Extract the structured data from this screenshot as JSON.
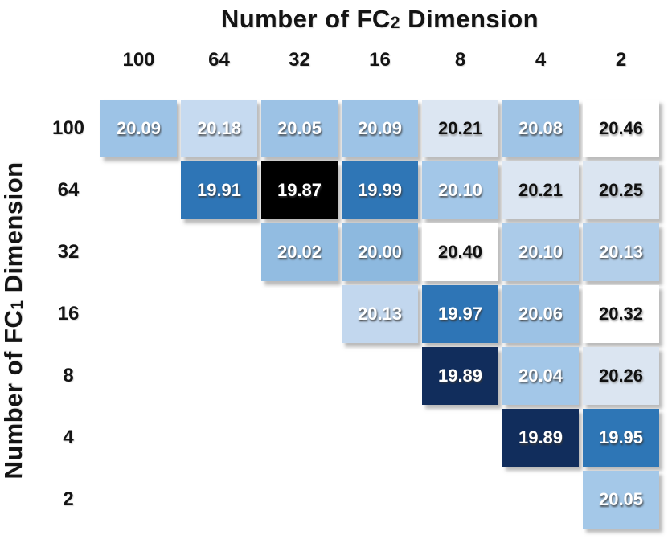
{
  "title": {
    "prefix": "Number of FC",
    "sub": "2",
    "suffix": " Dimension"
  },
  "y_axis": {
    "prefix": "Number of FC",
    "sub": "1",
    "suffix": " Dimension"
  },
  "chart_data": {
    "type": "heatmap",
    "title": "Number of FC2 Dimension",
    "ylabel": "Number of FC1 Dimension",
    "columns": [
      "100",
      "64",
      "32",
      "16",
      "8",
      "4",
      "2"
    ],
    "rows": [
      "100",
      "64",
      "32",
      "16",
      "8",
      "4",
      "2"
    ],
    "value_range": [
      19.87,
      20.46
    ],
    "color_scale": {
      "low": "#112d5c",
      "mid": "#9dc3e6",
      "high": "#ffffff",
      "min_highlight": "#000000"
    },
    "cells": [
      {
        "row": "100",
        "col": "100",
        "value": "20.09",
        "bg": "#9dc3e6",
        "fg": "#ffffff"
      },
      {
        "row": "100",
        "col": "64",
        "value": "20.18",
        "bg": "#c6daf0",
        "fg": "#ffffff"
      },
      {
        "row": "100",
        "col": "32",
        "value": "20.05",
        "bg": "#9cc2e5",
        "fg": "#ffffff"
      },
      {
        "row": "100",
        "col": "16",
        "value": "20.09",
        "bg": "#9dc3e6",
        "fg": "#ffffff"
      },
      {
        "row": "100",
        "col": "8",
        "value": "20.21",
        "bg": "#dce6f2",
        "fg": "#111111"
      },
      {
        "row": "100",
        "col": "4",
        "value": "20.08",
        "bg": "#9fc4e6",
        "fg": "#ffffff"
      },
      {
        "row": "100",
        "col": "2",
        "value": "20.46",
        "bg": "#ffffff",
        "fg": "#111111"
      },
      {
        "row": "64",
        "col": "64",
        "value": "19.91",
        "bg": "#2e75b6",
        "fg": "#ffffff"
      },
      {
        "row": "64",
        "col": "32",
        "value": "19.87",
        "bg": "#000000",
        "fg": "#ffffff"
      },
      {
        "row": "64",
        "col": "16",
        "value": "19.99",
        "bg": "#2f76b6",
        "fg": "#ffffff"
      },
      {
        "row": "64",
        "col": "8",
        "value": "20.10",
        "bg": "#a3c7e8",
        "fg": "#ffffff"
      },
      {
        "row": "64",
        "col": "4",
        "value": "20.21",
        "bg": "#dce6f2",
        "fg": "#111111"
      },
      {
        "row": "64",
        "col": "2",
        "value": "20.25",
        "bg": "#dbe5f1",
        "fg": "#111111"
      },
      {
        "row": "32",
        "col": "32",
        "value": "20.02",
        "bg": "#92bce1",
        "fg": "#ffffff"
      },
      {
        "row": "32",
        "col": "16",
        "value": "20.00",
        "bg": "#8db9df",
        "fg": "#ffffff"
      },
      {
        "row": "32",
        "col": "8",
        "value": "20.40",
        "bg": "#ffffff",
        "fg": "#111111"
      },
      {
        "row": "32",
        "col": "4",
        "value": "20.10",
        "bg": "#abcbe9",
        "fg": "#ffffff"
      },
      {
        "row": "32",
        "col": "2",
        "value": "20.13",
        "bg": "#b3cfea",
        "fg": "#ffffff"
      },
      {
        "row": "16",
        "col": "16",
        "value": "20.13",
        "bg": "#c2d7ee",
        "fg": "#ffffff"
      },
      {
        "row": "16",
        "col": "8",
        "value": "19.97",
        "bg": "#2e75b6",
        "fg": "#ffffff"
      },
      {
        "row": "16",
        "col": "4",
        "value": "20.06",
        "bg": "#9cc2e5",
        "fg": "#ffffff"
      },
      {
        "row": "16",
        "col": "2",
        "value": "20.32",
        "bg": "#ffffff",
        "fg": "#111111"
      },
      {
        "row": "8",
        "col": "8",
        "value": "19.89",
        "bg": "#112d5c",
        "fg": "#ffffff"
      },
      {
        "row": "8",
        "col": "4",
        "value": "20.04",
        "bg": "#a3c7e8",
        "fg": "#ffffff"
      },
      {
        "row": "8",
        "col": "2",
        "value": "20.26",
        "bg": "#dbe5f1",
        "fg": "#111111"
      },
      {
        "row": "4",
        "col": "4",
        "value": "19.89",
        "bg": "#112d5c",
        "fg": "#ffffff"
      },
      {
        "row": "4",
        "col": "2",
        "value": "19.95",
        "bg": "#2e76b6",
        "fg": "#ffffff"
      },
      {
        "row": "2",
        "col": "2",
        "value": "20.05",
        "bg": "#a4c8e8",
        "fg": "#ffffff"
      }
    ]
  }
}
